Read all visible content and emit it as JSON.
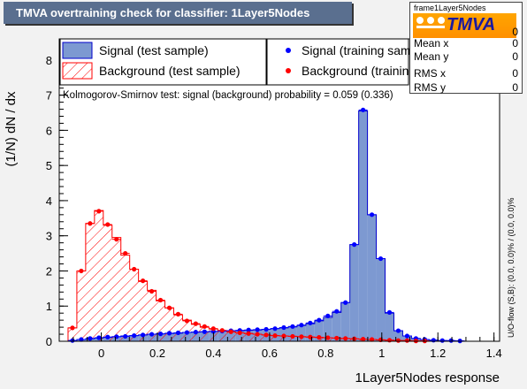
{
  "header": {
    "title": "TMVA overtraining check for classifier: 1Layer5Nodes"
  },
  "stats": {
    "name": "frame1Layer5Nodes",
    "logo_text": "TMVA",
    "rows": [
      {
        "label": "Mean x",
        "value": "0"
      },
      {
        "label": "Mean y",
        "value": "0"
      },
      {
        "label": "RMS x",
        "value": "0"
      },
      {
        "label": "RMS y",
        "value": "0"
      }
    ],
    "entries_value": "0"
  },
  "legend": {
    "signal_test": "Signal (test sample)",
    "background_test": "Background (test sample)",
    "signal_train": "Signal (training sample)",
    "background_train": "Background (training sample)"
  },
  "ks_text": "Kolmogorov-Smirnov test: signal (background) probability = 0.059 (0.336)",
  "side_text": "U/O-flow (S,B): (0.0, 0.0)% / (0.0, 0.0)%",
  "colors": {
    "signal_fill": "#7d99d1",
    "signal_line": "#0000cc",
    "background_line": "#ff0000",
    "background_marker": "#ff0000",
    "signal_marker": "#0000ff"
  },
  "chart_data": {
    "type": "bar",
    "xlabel": "1Layer5Nodes response",
    "ylabel": "(1/N) dN / dx",
    "xlim": [
      -0.15,
      1.42
    ],
    "ylim": [
      0,
      8.6
    ],
    "x_ticks": [
      "0",
      "0.2",
      "0.4",
      "0.6",
      "0.8",
      "1",
      "1.2",
      "1.4"
    ],
    "y_ticks": [
      "0",
      "1",
      "2",
      "3",
      "4",
      "5",
      "6",
      "7",
      "8"
    ],
    "bin_edges": [
      -0.15,
      -0.1186,
      -0.0872,
      -0.0558,
      -0.0244,
      0.007,
      0.0384,
      0.0698,
      0.1012,
      0.1326,
      0.164,
      0.1954,
      0.2268,
      0.2582,
      0.2896,
      0.321,
      0.3524,
      0.3838,
      0.4152,
      0.4466,
      0.478,
      0.5094,
      0.5408,
      0.5722,
      0.6036,
      0.635,
      0.6664,
      0.6978,
      0.7292,
      0.7606,
      0.792,
      0.8234,
      0.8548,
      0.8862,
      0.9176,
      0.949,
      0.9804,
      1.0118,
      1.0432,
      1.0746,
      1.106,
      1.1374,
      1.1688,
      1.2002,
      1.2316,
      1.263,
      1.2944,
      1.3258,
      1.3572,
      1.3886,
      1.42
    ],
    "series": [
      {
        "name": "Signal (test sample)",
        "values": [
          0,
          0.02,
          0.05,
          0.07,
          0.09,
          0.11,
          0.13,
          0.15,
          0.16,
          0.18,
          0.2,
          0.21,
          0.22,
          0.23,
          0.25,
          0.26,
          0.27,
          0.28,
          0.29,
          0.3,
          0.3,
          0.31,
          0.32,
          0.34,
          0.36,
          0.38,
          0.41,
          0.45,
          0.5,
          0.58,
          0.68,
          0.82,
          1.1,
          2.75,
          6.55,
          3.6,
          2.35,
          0.8,
          0.3,
          0.15,
          0.08,
          0.05,
          0.03,
          0.02,
          0.01,
          0.01,
          0,
          0,
          0,
          0
        ]
      },
      {
        "name": "Background (test sample)",
        "values": [
          0,
          0.38,
          2.0,
          3.35,
          3.72,
          3.3,
          2.95,
          2.45,
          2.05,
          1.7,
          1.45,
          1.15,
          0.95,
          0.75,
          0.6,
          0.48,
          0.4,
          0.35,
          0.3,
          0.27,
          0.24,
          0.22,
          0.2,
          0.18,
          0.16,
          0.15,
          0.14,
          0.13,
          0.12,
          0.11,
          0.1,
          0.09,
          0.08,
          0.07,
          0.06,
          0.05,
          0.04,
          0.03,
          0.02,
          0.02,
          0.01,
          0.01,
          0,
          0,
          0,
          0,
          0,
          0,
          0,
          0
        ]
      },
      {
        "name": "Signal (training sample)",
        "values": [
          0,
          0.02,
          0.05,
          0.08,
          0.1,
          0.12,
          0.13,
          0.14,
          0.16,
          0.18,
          0.2,
          0.21,
          0.23,
          0.24,
          0.25,
          0.26,
          0.27,
          0.28,
          0.29,
          0.3,
          0.31,
          0.32,
          0.33,
          0.34,
          0.36,
          0.39,
          0.42,
          0.46,
          0.52,
          0.6,
          0.72,
          0.85,
          1.1,
          2.75,
          6.58,
          3.6,
          2.35,
          0.82,
          0.3,
          0.15,
          0.08,
          0.05,
          0.03,
          0.02,
          0.02,
          0.01,
          0,
          0,
          0,
          0
        ]
      },
      {
        "name": "Background (training sample)",
        "values": [
          0,
          0.38,
          2.0,
          3.35,
          3.7,
          3.32,
          2.9,
          2.5,
          2.05,
          1.72,
          1.42,
          1.17,
          0.95,
          0.77,
          0.58,
          0.5,
          0.42,
          0.36,
          0.31,
          0.27,
          0.24,
          0.22,
          0.2,
          0.18,
          0.16,
          0.15,
          0.14,
          0.13,
          0.12,
          0.11,
          0.1,
          0.09,
          0.08,
          0.07,
          0.06,
          0.05,
          0.04,
          0.03,
          0.02,
          0.02,
          0.01,
          0.01,
          0,
          0,
          0,
          0,
          0,
          0,
          0,
          0
        ]
      }
    ]
  }
}
